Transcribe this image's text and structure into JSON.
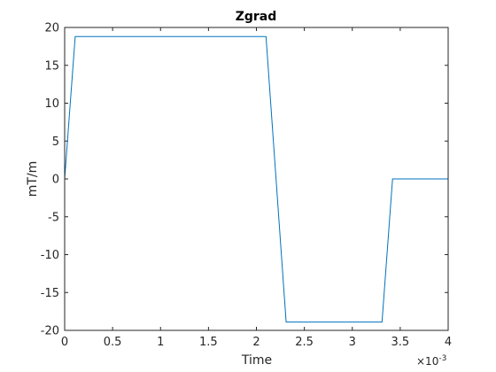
{
  "chart_data": {
    "type": "line",
    "title": "Zgrad",
    "xlabel": "Time",
    "ylabel": "mT/m",
    "x_exponent_label": "×10",
    "x_exponent_power": "-3",
    "xlim": [
      0,
      4
    ],
    "ylim": [
      -20,
      20
    ],
    "xticks": [
      0,
      0.5,
      1,
      1.5,
      2,
      2.5,
      3,
      3.5,
      4
    ],
    "xtick_labels": [
      "0",
      "0.5",
      "1",
      "1.5",
      "2",
      "2.5",
      "3",
      "3.5",
      "4"
    ],
    "yticks": [
      -20,
      -15,
      -10,
      -5,
      0,
      5,
      10,
      15,
      20
    ],
    "ytick_labels": [
      "-20",
      "-15",
      "-10",
      "-5",
      "0",
      "5",
      "10",
      "15",
      "20"
    ],
    "grid": false,
    "series": [
      {
        "color": "#0072bd",
        "x": [
          0,
          0.11,
          2.1,
          2.31,
          3.31,
          3.42,
          4.0
        ],
        "y": [
          0,
          18.8,
          18.8,
          -18.9,
          -18.9,
          0,
          0
        ]
      }
    ]
  }
}
